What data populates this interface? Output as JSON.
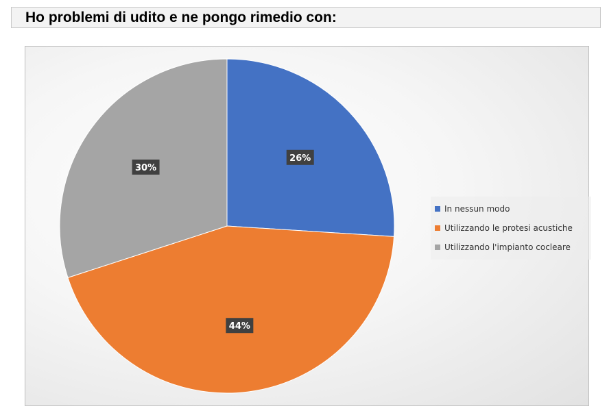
{
  "page": {
    "title": "Ho problemi di udito e ne pongo rimedio con:"
  },
  "chart_data": {
    "type": "pie",
    "title": "Ho problemi di udito e ne pongo rimedio con:",
    "categories": [
      "In nessun modo",
      "Utilizzando le protesi acustiche",
      "Utilizzando l'impianto cocleare"
    ],
    "values": [
      26,
      44,
      30
    ],
    "labels": [
      "26%",
      "44%",
      "30%"
    ],
    "colors": [
      "#4472C4",
      "#ED7D31",
      "#A5A5A5"
    ],
    "start": "12 o'clock",
    "direction": "clockwise",
    "legend_position": "right"
  }
}
